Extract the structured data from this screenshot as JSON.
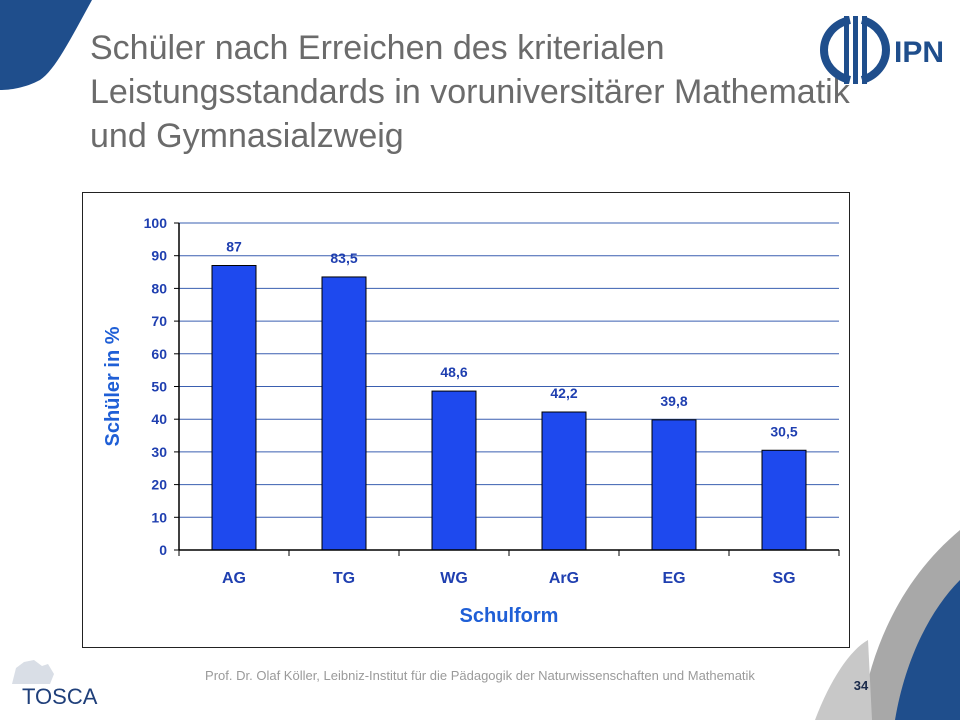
{
  "slide": {
    "title": "Schüler nach Erreichen des kriterialen Leistungsstandards in voruniversitärer Mathematik und Gymnasialzweig",
    "footer": "Prof. Dr. Olaf Köller, Leibniz-Institut für die Pädagogik der Naturwissenschaften und Mathematik",
    "page_number": "34",
    "logo_ipn": "IPN",
    "logo_tosca": "TOSCA",
    "colors": {
      "accent": "#1f4e8c",
      "bar": "#1e49ee",
      "title": "#6b6b6b",
      "axis_label": "#1f5fd6"
    }
  },
  "chart_data": {
    "type": "bar",
    "categories": [
      "AG",
      "TG",
      "WG",
      "ArG",
      "EG",
      "SG"
    ],
    "values": [
      87,
      83.5,
      48.6,
      42.2,
      39.8,
      30.5
    ],
    "value_labels": [
      "87",
      "83,5",
      "48,6",
      "42,2",
      "39,8",
      "30,5"
    ],
    "title": "",
    "xlabel": "Schulform",
    "ylabel": "Schüler in %",
    "ylim": [
      0,
      100
    ],
    "yticks": [
      "0",
      "10",
      "20",
      "30",
      "40",
      "50",
      "60",
      "70",
      "80",
      "90",
      "100"
    ],
    "grid": true,
    "legend": "none"
  }
}
